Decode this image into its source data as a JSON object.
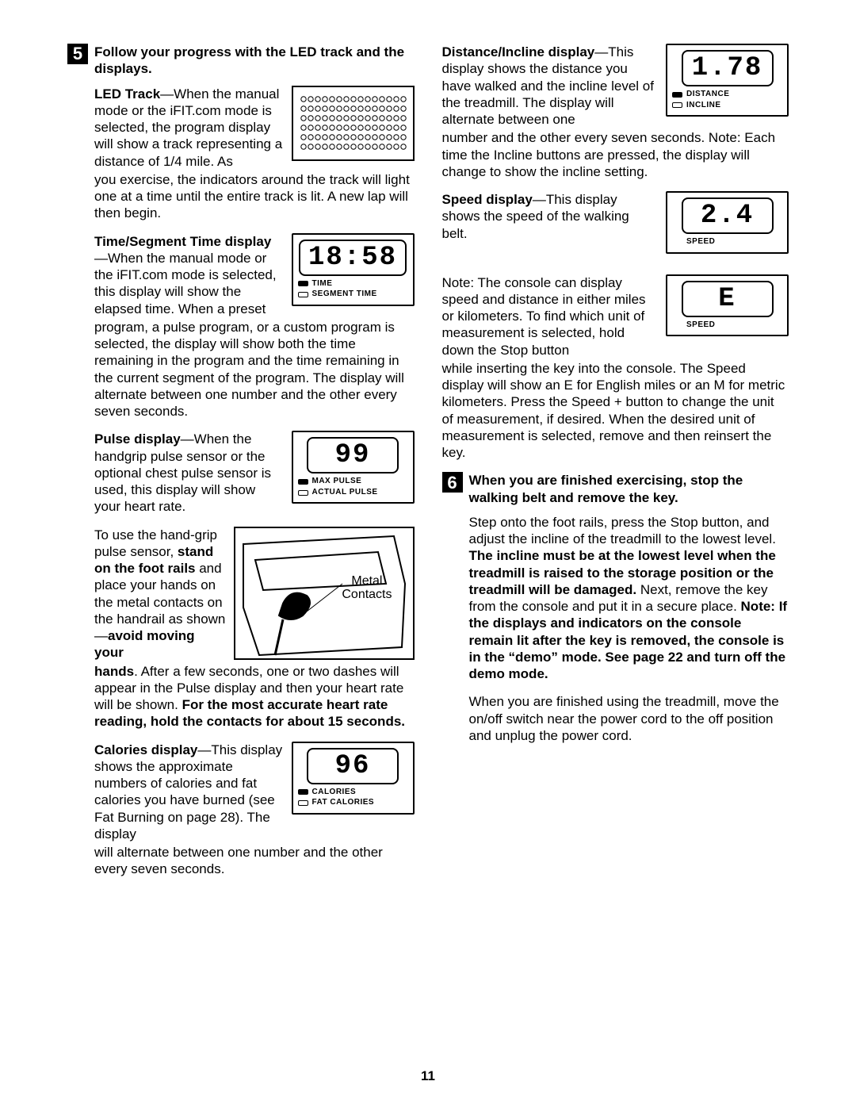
{
  "page_number": "11",
  "step5_num": "5",
  "step5_title": "Follow your progress with the LED track and the displays.",
  "led_bold1": "LED Track",
  "led_text1": "—When the manual mode or the iFIT.com mode is selected, the program display will show a track representing a distance of 1/4 mile. As",
  "led_text2": "you exercise, the indicators around the track will light one at a time until the entire track is lit. A new lap will then begin.",
  "time_bold": "Time/Segment Time display",
  "time_text1": "—When the manual mode or the iFIT.com mode is selected, this display will show the elapsed time. When a preset",
  "time_text2": "program, a pulse program, or a custom program is selected, the display will show both the time remaining in the program and the time remaining in the current segment of the program. The display will alternate between one number and the other every seven seconds.",
  "time_value": "18:58",
  "time_label1": "TIME",
  "time_label2": "SEGMENT TIME",
  "pulse_bold": "Pulse display",
  "pulse_text": "—When the handgrip pulse sensor or the optional chest pulse sensor is used, this display will show your heart rate.",
  "pulse_value": "99",
  "pulse_label1": "MAX PULSE",
  "pulse_label2": "ACTUAL PULSE",
  "hand_text1": "To use the hand-grip pulse sensor, ",
  "hand_bold1": "stand on the foot rails",
  "hand_text2": " and place your hands on the metal contacts on the handrail as shown—",
  "hand_bold2": "avoid moving your",
  "hand_bold3": "hands",
  "hand_text3": ". After a few seconds, one or two dashes will appear in the Pulse display and then your heart rate will be shown. ",
  "hand_bold4": "For the most accurate heart rate reading, hold the contacts for about 15 seconds.",
  "fig_caption": "Metal Contacts",
  "cal_bold": "Calories display",
  "cal_text1": "—This display shows the approximate numbers of calories and fat calories you have burned (see Fat Burning on page 28). The display",
  "cal_text2": "will alternate between one number and the other every seven seconds.",
  "cal_value": "96",
  "cal_label1": "CALORIES",
  "cal_label2": "FAT CALORIES",
  "dist_bold": "Distance/Incline display",
  "dist_text1": "—This display shows the distance you have walked and the incline level of the treadmill. The display will alternate between one",
  "dist_text2": "number and the other every seven seconds. Note: Each time the Incline buttons are pressed, the display will change to show the incline setting.",
  "dist_value": "1.78",
  "dist_label1": "DISTANCE",
  "dist_label2": "INCLINE",
  "speed_bold": "Speed display",
  "speed_text": "—This display shows the speed of the walking belt.",
  "speed_value": "2.4",
  "speed_label": "SPEED",
  "note_text1": "Note: The console can display speed and distance in either miles or kilometers. To find which unit of measurement is selected, hold down the Stop button",
  "note_text2": "while inserting the key into the console. The Speed display will show an E for English miles or an M for metric kilometers. Press the Speed + button to change the unit of measurement, if desired. When the desired unit of measurement is selected, remove and then reinsert the key.",
  "note_value": "E",
  "step6_num": "6",
  "step6_title": "When you are finished exercising, stop the walking belt and remove the key.",
  "step6_p1a": "Step onto the foot rails, press the Stop button, and adjust the incline of the treadmill to the lowest level. ",
  "step6_p1b": "The incline must be at the lowest level when the treadmill is raised to the storage position or the treadmill will be damaged.",
  "step6_p1c": " Next, remove the key from the console and put it in a secure place. ",
  "step6_p1d": "Note: If the displays and indicators on the console remain lit after the key is removed, the console is in the “demo” mode. See page 22 and turn off the demo mode.",
  "step6_p2": "When you are finished using the treadmill, move the on/off switch near the power cord to the off position and unplug the power cord."
}
